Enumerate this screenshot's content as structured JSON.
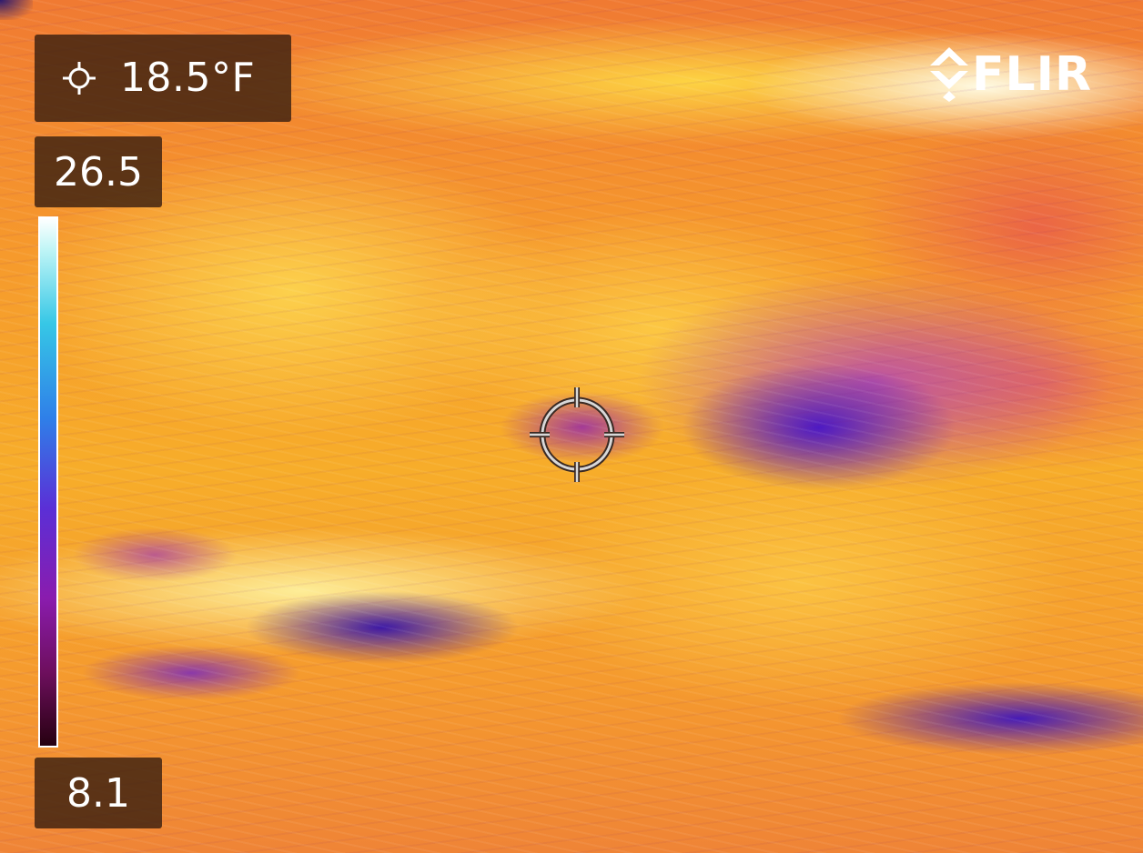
{
  "overlay": {
    "spot_temperature": "18.5°F",
    "scale_max": "26.5",
    "scale_min": "8.1"
  },
  "branding": {
    "logo_text": "FLIR"
  },
  "palette": {
    "name": "iron",
    "colors": [
      "#ffffff",
      "#36c7e6",
      "#2f7fe8",
      "#5b2fd6",
      "#8a1cae",
      "#6e0f5e",
      "#260010"
    ]
  },
  "icons": {
    "spot_meter": "spot-meter-icon",
    "crosshair": "crosshair-icon",
    "logo_mark": "flir-diamond-icon"
  }
}
